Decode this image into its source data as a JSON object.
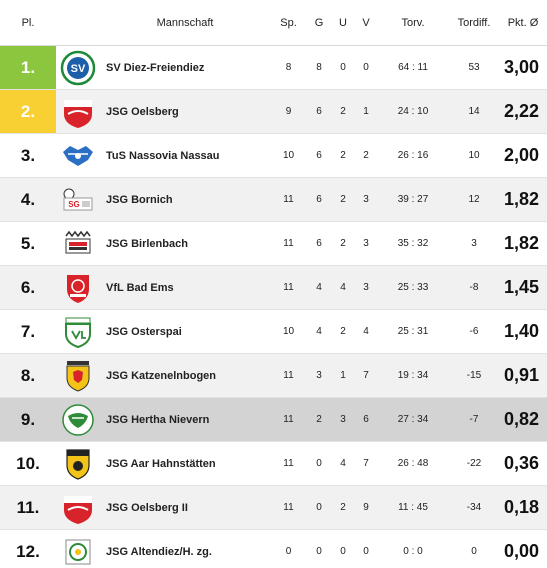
{
  "header": {
    "pl": "Pl.",
    "team": "Mannschaft",
    "sp": "Sp.",
    "g": "G",
    "u": "U",
    "v": "V",
    "torv": "Torv.",
    "diff": "Tordiff.",
    "pkt": "Pkt. Ø"
  },
  "colors": {
    "first_place": "#8cc63f",
    "second_place": "#f9d033",
    "highlight_row": "#d3d3d3",
    "alt_row": "#f1f1f1"
  },
  "rows": [
    {
      "pl": "1.",
      "team": "SV Diez-Freiendiez",
      "sp": "8",
      "g": "8",
      "u": "0",
      "v": "0",
      "torv": "64 : 11",
      "diff": "53",
      "pkt": "3,00",
      "logo": "sv-diez-logo"
    },
    {
      "pl": "2.",
      "team": "JSG Oelsberg",
      "sp": "9",
      "g": "6",
      "u": "2",
      "v": "1",
      "torv": "24 : 10",
      "diff": "14",
      "pkt": "2,22",
      "logo": "jsg-oelsberg-logo"
    },
    {
      "pl": "3.",
      "team": "TuS Nassovia Nassau",
      "sp": "10",
      "g": "6",
      "u": "2",
      "v": "2",
      "torv": "26 : 16",
      "diff": "10",
      "pkt": "2,00",
      "logo": "tus-nassovia-logo"
    },
    {
      "pl": "4.",
      "team": "JSG Bornich",
      "sp": "11",
      "g": "6",
      "u": "2",
      "v": "3",
      "torv": "39 : 27",
      "diff": "12",
      "pkt": "1,82",
      "logo": "jsg-bornich-logo"
    },
    {
      "pl": "5.",
      "team": "JSG Birlenbach",
      "sp": "11",
      "g": "6",
      "u": "2",
      "v": "3",
      "torv": "35 : 32",
      "diff": "3",
      "pkt": "1,82",
      "logo": "jsg-birlenbach-logo"
    },
    {
      "pl": "6.",
      "team": "VfL Bad Ems",
      "sp": "11",
      "g": "4",
      "u": "4",
      "v": "3",
      "torv": "25 : 33",
      "diff": "-8",
      "pkt": "1,45",
      "logo": "vfl-bad-ems-logo"
    },
    {
      "pl": "7.",
      "team": "JSG Osterspai",
      "sp": "10",
      "g": "4",
      "u": "2",
      "v": "4",
      "torv": "25 : 31",
      "diff": "-6",
      "pkt": "1,40",
      "logo": "jsg-osterspai-logo"
    },
    {
      "pl": "8.",
      "team": "JSG Katzenelnbogen",
      "sp": "11",
      "g": "3",
      "u": "1",
      "v": "7",
      "torv": "19 : 34",
      "diff": "-15",
      "pkt": "0,91",
      "logo": "jsg-katzenelnbogen-logo"
    },
    {
      "pl": "9.",
      "team": "JSG Hertha Nievern",
      "sp": "11",
      "g": "2",
      "u": "3",
      "v": "6",
      "torv": "27 : 34",
      "diff": "-7",
      "pkt": "0,82",
      "logo": "jsg-hertha-nievern-logo"
    },
    {
      "pl": "10.",
      "team": "JSG Aar Hahnstätten",
      "sp": "11",
      "g": "0",
      "u": "4",
      "v": "7",
      "torv": "26 : 48",
      "diff": "-22",
      "pkt": "0,36",
      "logo": "jsg-aar-hahnstaetten-logo"
    },
    {
      "pl": "11.",
      "team": "JSG Oelsberg II",
      "sp": "11",
      "g": "0",
      "u": "2",
      "v": "9",
      "torv": "11 : 45",
      "diff": "-34",
      "pkt": "0,18",
      "logo": "jsg-oelsberg-ii-logo"
    },
    {
      "pl": "12.",
      "team": "JSG Altendiez/H. zg.",
      "sp": "0",
      "g": "0",
      "u": "0",
      "v": "0",
      "torv": "0 : 0",
      "diff": "0",
      "pkt": "0,00",
      "logo": "jsg-altendiez-logo"
    }
  ]
}
